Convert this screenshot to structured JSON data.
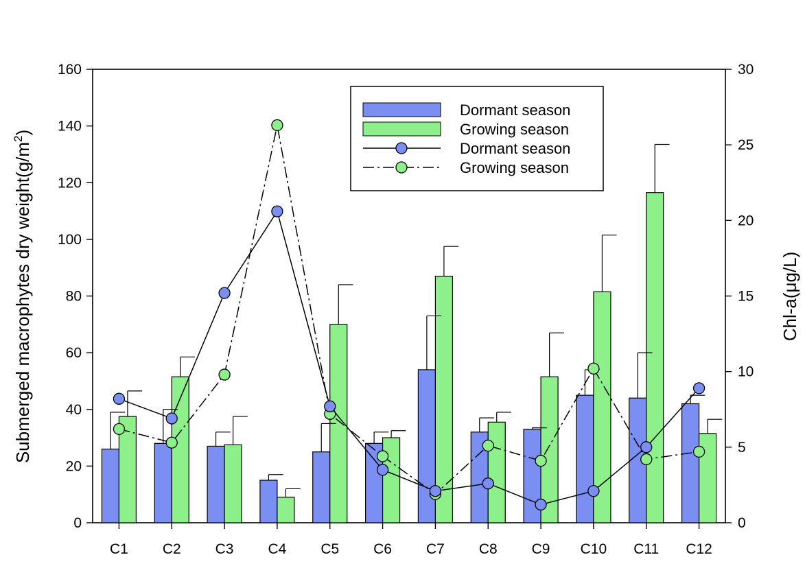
{
  "chart_data": {
    "type": "bar",
    "categories": [
      "C1",
      "C2",
      "C3",
      "C4",
      "C5",
      "C6",
      "C7",
      "C8",
      "C9",
      "C10",
      "C11",
      "C12"
    ],
    "ylabel_left": "Submerged macrophytes dry weight(g/m",
    "ylabel_left_sup": "2",
    "ylabel_left_close": ")",
    "ylabel_right": "Chl-a(μg/L)",
    "ylim_left": [
      0,
      160
    ],
    "ylim_right": [
      0,
      30
    ],
    "yticks_left": [
      "0",
      "20",
      "40",
      "60",
      "80",
      "100",
      "120",
      "140",
      "160"
    ],
    "yticks_right": [
      "0",
      "5",
      "10",
      "15",
      "20",
      "25",
      "30"
    ],
    "grid": false,
    "legend_position": "top-center",
    "bar_series": [
      {
        "name": "Dormant season",
        "color": "#7b8ff2",
        "values": [
          26,
          28,
          27,
          15,
          25,
          28,
          54,
          32,
          33,
          45,
          44,
          42
        ],
        "errors": [
          13,
          12,
          5,
          2,
          10,
          4,
          19,
          5,
          0.5,
          9,
          16,
          3
        ]
      },
      {
        "name": "Growing season",
        "color": "#8ef08a",
        "values": [
          37.5,
          51.5,
          27.5,
          9,
          70,
          30,
          87,
          35.5,
          51.5,
          81.5,
          116.5,
          31.5
        ],
        "errors": [
          9,
          7,
          10,
          3,
          14,
          2.5,
          10.5,
          3.5,
          15.5,
          20,
          17,
          5
        ]
      }
    ],
    "line_series": [
      {
        "name": "Dormant season",
        "color": "#7b8ff2",
        "style": "solid",
        "values": [
          8.2,
          6.9,
          15.2,
          20.6,
          7.7,
          3.5,
          2.1,
          2.6,
          1.2,
          2.1,
          5.0,
          8.9
        ]
      },
      {
        "name": "Growing season",
        "color": "#8ef08a",
        "style": "dash-dot",
        "values": [
          6.2,
          5.3,
          9.8,
          26.3,
          7.2,
          4.4,
          1.9,
          5.1,
          4.1,
          10.2,
          4.2,
          4.7
        ]
      }
    ]
  }
}
